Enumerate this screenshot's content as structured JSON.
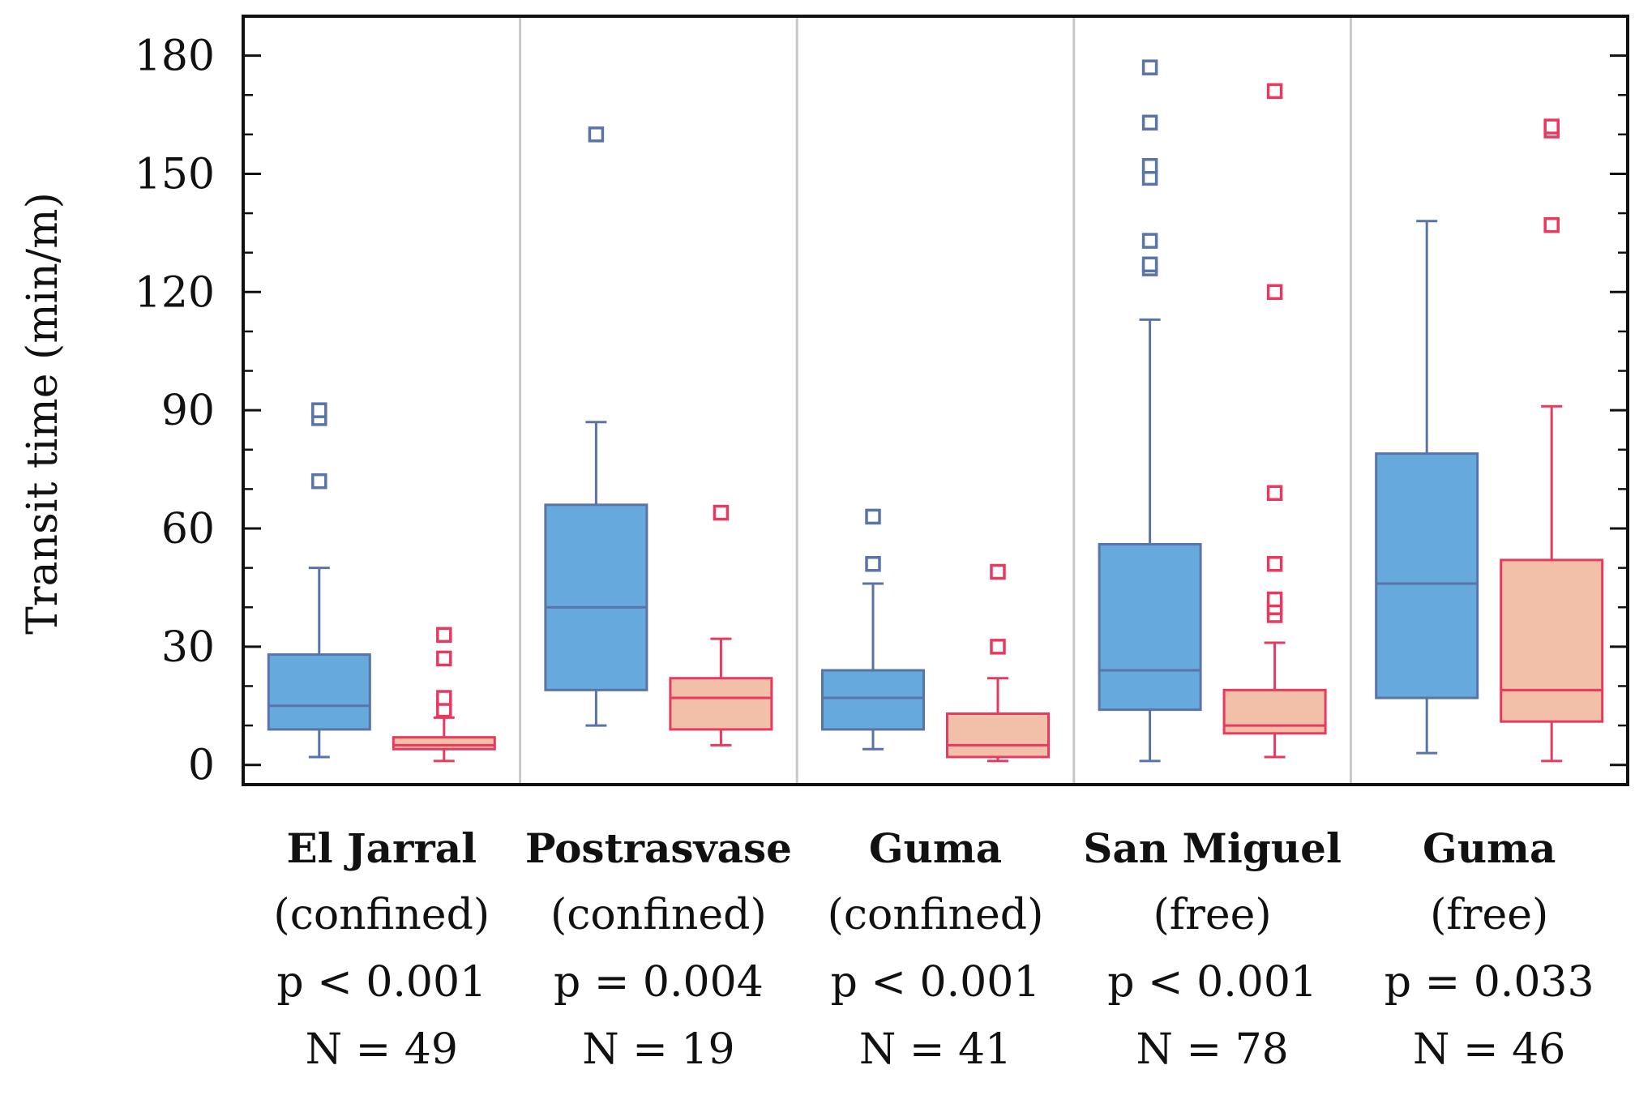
{
  "chart_data": {
    "type": "boxplot",
    "title": "",
    "xlabel": "",
    "ylabel": "Transit time (min/m)",
    "ylim": [
      -5,
      190
    ],
    "yticks": [
      0,
      30,
      60,
      90,
      120,
      150,
      180
    ],
    "series_colors": {
      "first": {
        "fill": "#66aadd",
        "stroke": "#5a73a8",
        "outlier": "#5a73a8"
      },
      "second": {
        "fill": "#f2c0a8",
        "stroke": "#e8395f",
        "outlier": "#e8395f"
      }
    },
    "separator_color": "#c8c8c8",
    "groups": [
      {
        "name": "El Jarral",
        "condition": "(confined)",
        "p": "p < 0.001",
        "n": "N = 49",
        "boxes": [
          {
            "series": "first",
            "whisker_low": 2,
            "q1": 9,
            "median": 15,
            "q3": 28,
            "whisker_high": 50,
            "outliers": [
              72,
              88,
              90
            ]
          },
          {
            "series": "second",
            "whisker_low": 1,
            "q1": 4,
            "median": 5,
            "q3": 7,
            "whisker_high": 12,
            "outliers": [
              14,
              17,
              27,
              33
            ]
          }
        ]
      },
      {
        "name": "Postrasvase",
        "condition": "(confined)",
        "p": "p = 0.004",
        "n": "N = 19",
        "boxes": [
          {
            "series": "first",
            "whisker_low": 10,
            "q1": 19,
            "median": 40,
            "q3": 66,
            "whisker_high": 87,
            "outliers": [
              160
            ]
          },
          {
            "series": "second",
            "whisker_low": 5,
            "q1": 9,
            "median": 17,
            "q3": 22,
            "whisker_high": 32,
            "outliers": [
              64
            ]
          }
        ]
      },
      {
        "name": "Guma",
        "condition": "(confined)",
        "p": "p < 0.001",
        "n": "N = 41",
        "boxes": [
          {
            "series": "first",
            "whisker_low": 4,
            "q1": 9,
            "median": 17,
            "q3": 24,
            "whisker_high": 46,
            "outliers": [
              51,
              63
            ]
          },
          {
            "series": "second",
            "whisker_low": 1,
            "q1": 2,
            "median": 5,
            "q3": 13,
            "whisker_high": 22,
            "outliers": [
              30,
              49
            ]
          }
        ]
      },
      {
        "name": "San Miguel",
        "condition": "(free)",
        "p": "p < 0.001",
        "n": "N = 78",
        "boxes": [
          {
            "series": "first",
            "whisker_low": 1,
            "q1": 14,
            "median": 24,
            "q3": 56,
            "whisker_high": 113,
            "outliers": [
              126,
              127,
              133,
              149,
              152,
              163,
              177
            ]
          },
          {
            "series": "second",
            "whisker_low": 2,
            "q1": 8,
            "median": 10,
            "q3": 19,
            "whisker_high": 31,
            "outliers": [
              38,
              40,
              42,
              51,
              69,
              120,
              171
            ]
          }
        ]
      },
      {
        "name": "Guma",
        "condition": "(free)",
        "p": "p = 0.033",
        "n": "N = 46",
        "boxes": [
          {
            "series": "first",
            "whisker_low": 3,
            "q1": 17,
            "median": 46,
            "q3": 79,
            "whisker_high": 138,
            "outliers": []
          },
          {
            "series": "second",
            "whisker_low": 1,
            "q1": 11,
            "median": 19,
            "q3": 52,
            "whisker_high": 91,
            "outliers": [
              137,
              161,
              162
            ]
          }
        ]
      }
    ]
  }
}
